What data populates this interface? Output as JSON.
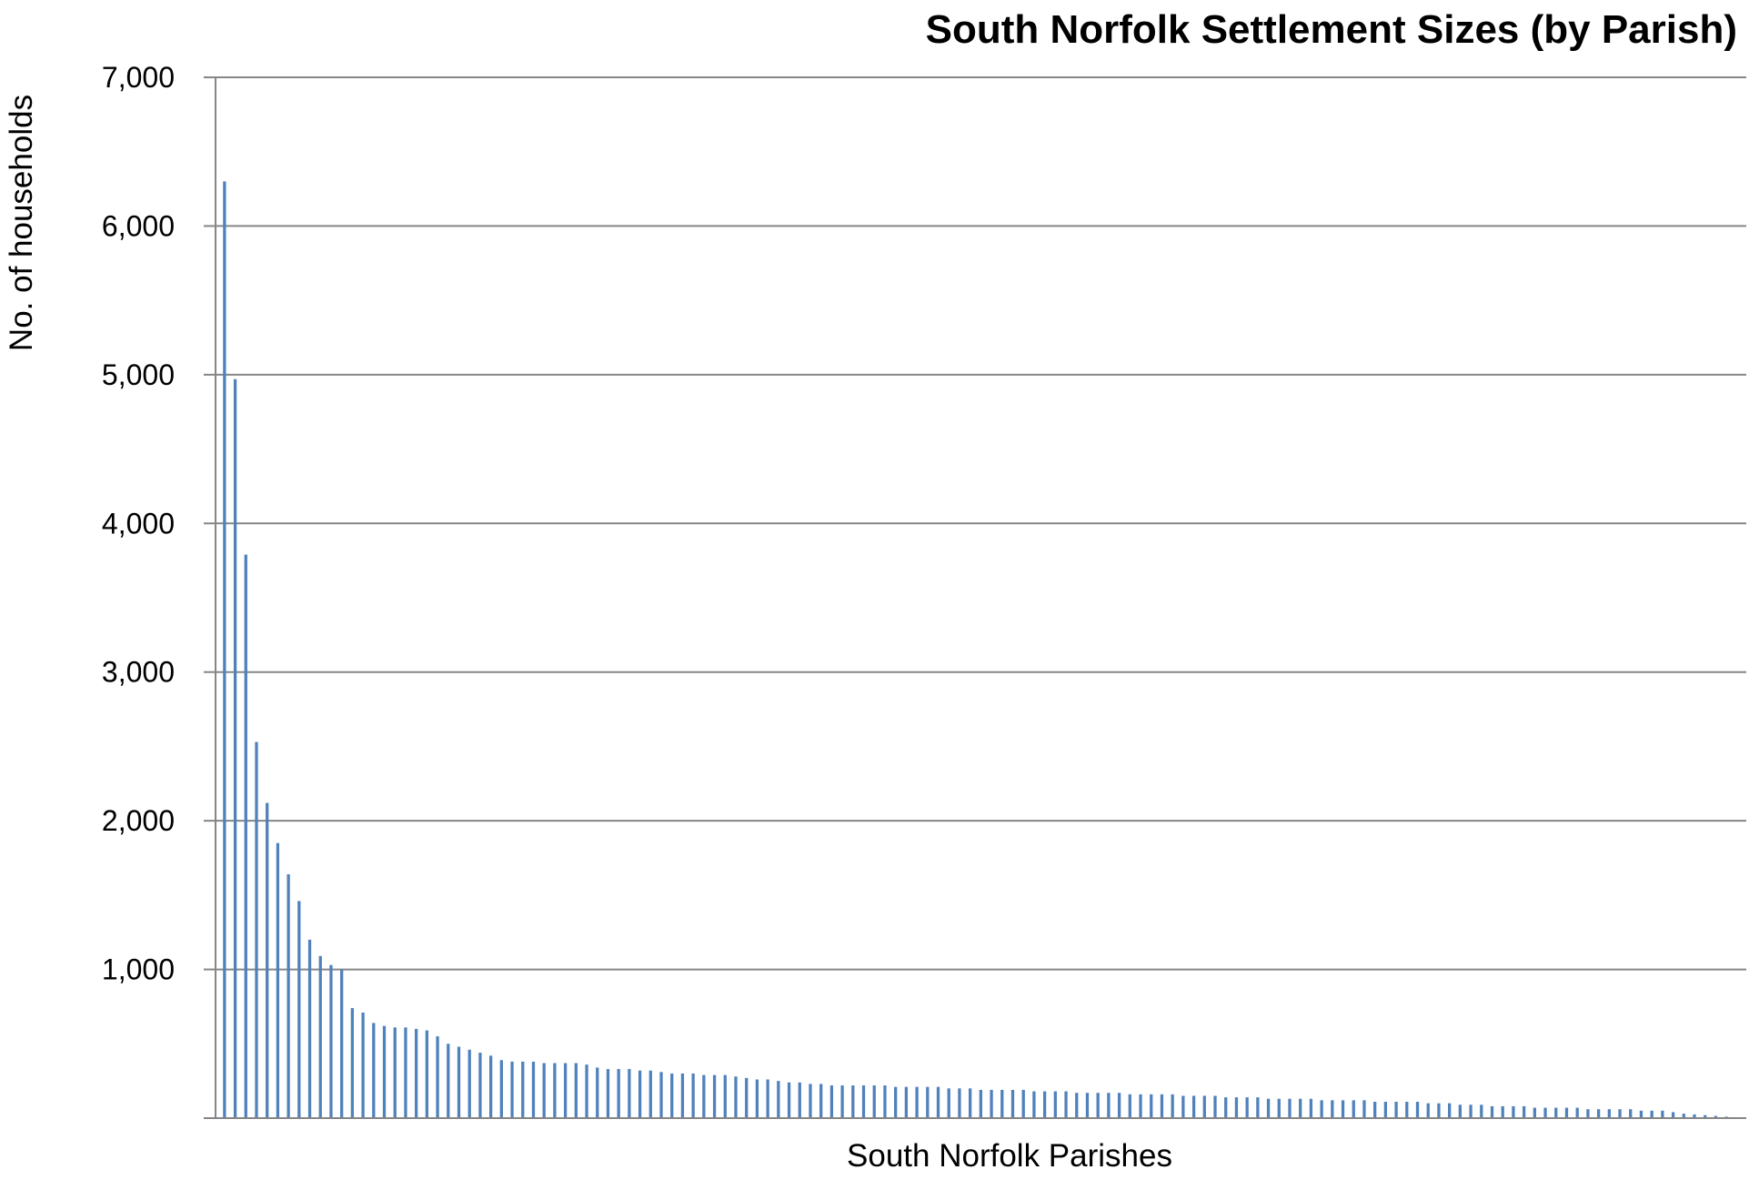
{
  "chart_data": {
    "type": "bar",
    "title": "South Norfolk Settlement Sizes (by Parish)",
    "xlabel": "South Norfolk Parishes",
    "ylabel": "No. of households",
    "ylim": [
      0,
      7000
    ],
    "yticks": [
      0,
      1000,
      2000,
      3000,
      4000,
      5000,
      6000,
      7000
    ],
    "ytick_labels": [
      "",
      "1,000",
      "2,000",
      "3,000",
      "4,000",
      "5,000",
      "6,000",
      "7,000"
    ],
    "grid": true,
    "legend": "none",
    "bar_color": "#4f81bd",
    "values": [
      6300,
      4970,
      3790,
      2530,
      2120,
      1850,
      1640,
      1460,
      1200,
      1090,
      1030,
      1000,
      740,
      710,
      640,
      620,
      610,
      610,
      600,
      590,
      550,
      500,
      480,
      460,
      440,
      420,
      390,
      380,
      380,
      380,
      370,
      370,
      370,
      370,
      360,
      340,
      330,
      330,
      330,
      320,
      320,
      310,
      300,
      300,
      300,
      290,
      290,
      290,
      280,
      270,
      260,
      260,
      250,
      240,
      240,
      230,
      230,
      220,
      220,
      220,
      220,
      220,
      220,
      210,
      210,
      210,
      210,
      210,
      200,
      200,
      200,
      190,
      190,
      190,
      190,
      190,
      180,
      180,
      180,
      180,
      170,
      170,
      170,
      170,
      170,
      160,
      160,
      160,
      160,
      160,
      150,
      150,
      150,
      150,
      140,
      140,
      140,
      140,
      130,
      130,
      130,
      130,
      130,
      120,
      120,
      120,
      120,
      120,
      110,
      110,
      110,
      110,
      110,
      100,
      100,
      100,
      90,
      90,
      90,
      80,
      80,
      80,
      80,
      70,
      70,
      70,
      70,
      70,
      60,
      60,
      60,
      60,
      60,
      50,
      50,
      50,
      40,
      30,
      25,
      20,
      15,
      10
    ]
  }
}
